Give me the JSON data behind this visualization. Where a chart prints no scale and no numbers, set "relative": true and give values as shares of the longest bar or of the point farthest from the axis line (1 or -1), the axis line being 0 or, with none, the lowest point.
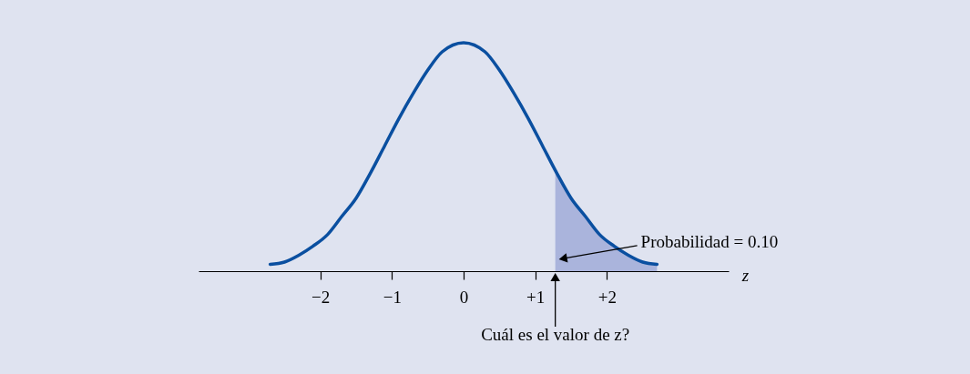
{
  "chart_data": {
    "type": "line",
    "relative": true,
    "xlabel": "z",
    "xlim": [
      -3.7,
      3.7
    ],
    "xticks": [
      {
        "value": -2,
        "label": "−2"
      },
      {
        "value": -1,
        "label": "−1"
      },
      0,
      {
        "value": 1,
        "label": "+1"
      },
      {
        "value": 2,
        "label": "+2"
      }
    ],
    "series": [
      {
        "color": "#0a4fa0",
        "x": [
          -2.7,
          -2.5,
          -2.3,
          -2.1,
          -1.9,
          -1.7,
          -1.5,
          -1.3,
          -1.1,
          -0.9,
          -0.7,
          -0.5,
          -0.3,
          0,
          0.3,
          0.5,
          0.7,
          0.9,
          1.1,
          1.3,
          1.5,
          1.7,
          1.9,
          2.1,
          2.3,
          2.5,
          2.7
        ],
        "values": [
          0.03,
          0.04,
          0.07,
          0.11,
          0.16,
          0.24,
          0.32,
          0.43,
          0.55,
          0.67,
          0.78,
          0.88,
          0.96,
          1,
          0.96,
          0.88,
          0.78,
          0.67,
          0.55,
          0.43,
          0.32,
          0.24,
          0.16,
          0.11,
          0.07,
          0.04,
          0.03
        ]
      },
      {
        "type": "area",
        "color": "#aab4dc",
        "x": [
          1.28,
          1.5,
          1.7,
          1.9,
          2.1,
          2.3,
          2.5,
          2.7
        ],
        "values": [
          0.44,
          0.32,
          0.24,
          0.16,
          0.11,
          0.07,
          0.04,
          0.03
        ]
      }
    ],
    "annotations": [
      {
        "text": "Probabilidad = 0.10",
        "x": 1.33,
        "y": 0.04
      },
      {
        "text": "Cuál es el valor de z?",
        "x": 1.28,
        "y": 0
      }
    ]
  }
}
